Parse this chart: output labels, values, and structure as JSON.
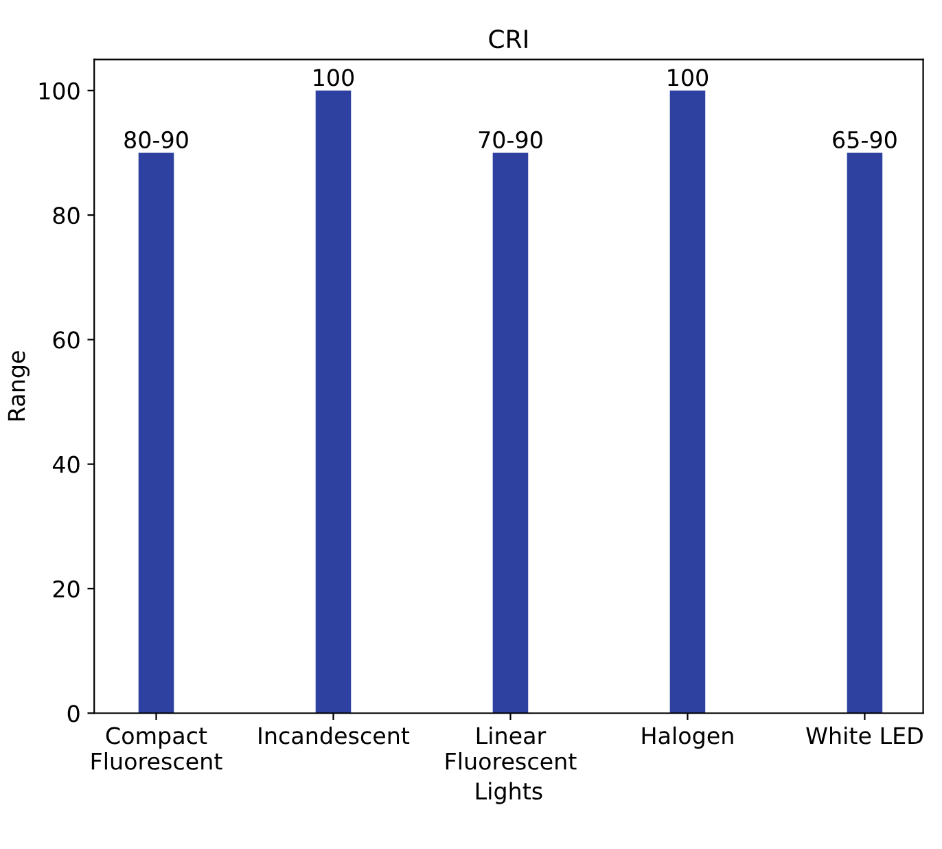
{
  "chart_data": {
    "type": "bar",
    "title": "CRI",
    "xlabel": "Lights",
    "ylabel": "Range",
    "categories": [
      "Compact\nFluorescent",
      "Incandescent",
      "Linear\nFluorescent",
      "Halogen",
      "White LED"
    ],
    "values": [
      90,
      100,
      90,
      100,
      90
    ],
    "value_labels": [
      "80-90",
      "100",
      "70-90",
      "100",
      "65-90"
    ],
    "color": "#2e41a0",
    "ylim": [
      0,
      105
    ],
    "yticks": [
      0,
      20,
      40,
      60,
      80,
      100
    ],
    "grid": false
  }
}
